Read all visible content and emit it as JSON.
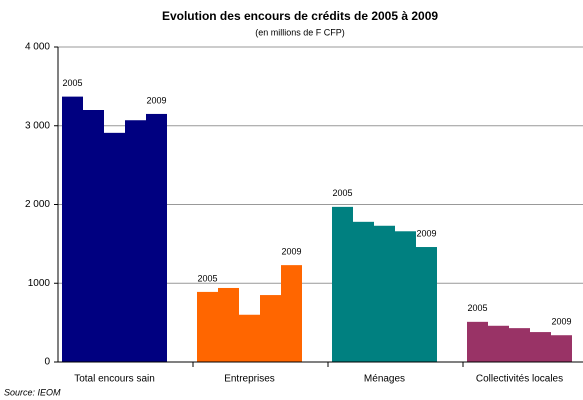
{
  "chart_data": {
    "type": "bar",
    "title": "Evolution des encours de crédits de 2005 à 2009",
    "subtitle": "(en millions de F CFP)",
    "source": "Source: IEOM",
    "groups": [
      {
        "name": "Total encours sain",
        "color": "#000080",
        "values": [
          3370,
          3200,
          2910,
          3070,
          3150
        ],
        "labels": [
          "2005",
          "2009"
        ]
      },
      {
        "name": "Entreprises",
        "color": "#ff6600",
        "values": [
          890,
          940,
          600,
          850,
          1230
        ],
        "labels": [
          "2005",
          "2009"
        ]
      },
      {
        "name": "Ménages",
        "color": "#008080",
        "values": [
          1970,
          1780,
          1730,
          1660,
          1460
        ],
        "labels": [
          "2005",
          "2009"
        ]
      },
      {
        "name": "Collectivités locales",
        "color": "#993366",
        "values": [
          510,
          460,
          430,
          380,
          340
        ],
        "labels": [
          "2005",
          "2009"
        ]
      }
    ],
    "ylim": [
      0,
      4000
    ],
    "yticks": [
      0,
      1000,
      {
        "value": 2000,
        "label": "2 000"
      },
      {
        "value": 3000,
        "label": "3 000"
      },
      {
        "value": 4000,
        "label": "4 000"
      }
    ],
    "grid": true
  }
}
